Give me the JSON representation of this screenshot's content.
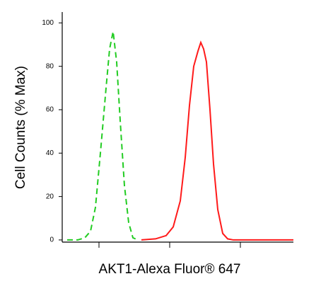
{
  "chart_data": {
    "type": "line",
    "xlabel": "AKT1-Alexa Fluor® 647",
    "ylabel": "Cell Counts (% Max)",
    "xscale": "log",
    "xlim": [
      302,
      562341
    ],
    "xticks": [
      1000,
      10000,
      100000
    ],
    "ylim": [
      -1,
      105
    ],
    "yticks": [
      0,
      20,
      40,
      60,
      80,
      100
    ],
    "series": [
      {
        "color": "#22cc22",
        "dash": true,
        "x": [
          355,
          501,
          631,
          759,
          891,
          1047,
          1259,
          1413,
          1585,
          1778,
          1995,
          2291,
          2630,
          3020,
          3548
        ],
        "values": [
          0,
          0,
          1,
          4,
          15,
          40,
          70,
          88,
          96,
          82,
          55,
          25,
          8,
          1,
          0
        ]
      },
      {
        "color": "#ff1a1a",
        "dash": false,
        "x": [
          3981,
          6310,
          8913,
          11220,
          14125,
          16596,
          19055,
          21878,
          25119,
          27542,
          30200,
          33113,
          37154,
          41687,
          47863,
          56234,
          66069,
          79433,
          562341
        ],
        "values": [
          0,
          0.5,
          2,
          6,
          18,
          38,
          62,
          80,
          87,
          91,
          88,
          82,
          60,
          35,
          14,
          3,
          0.5,
          0,
          0
        ]
      }
    ]
  }
}
